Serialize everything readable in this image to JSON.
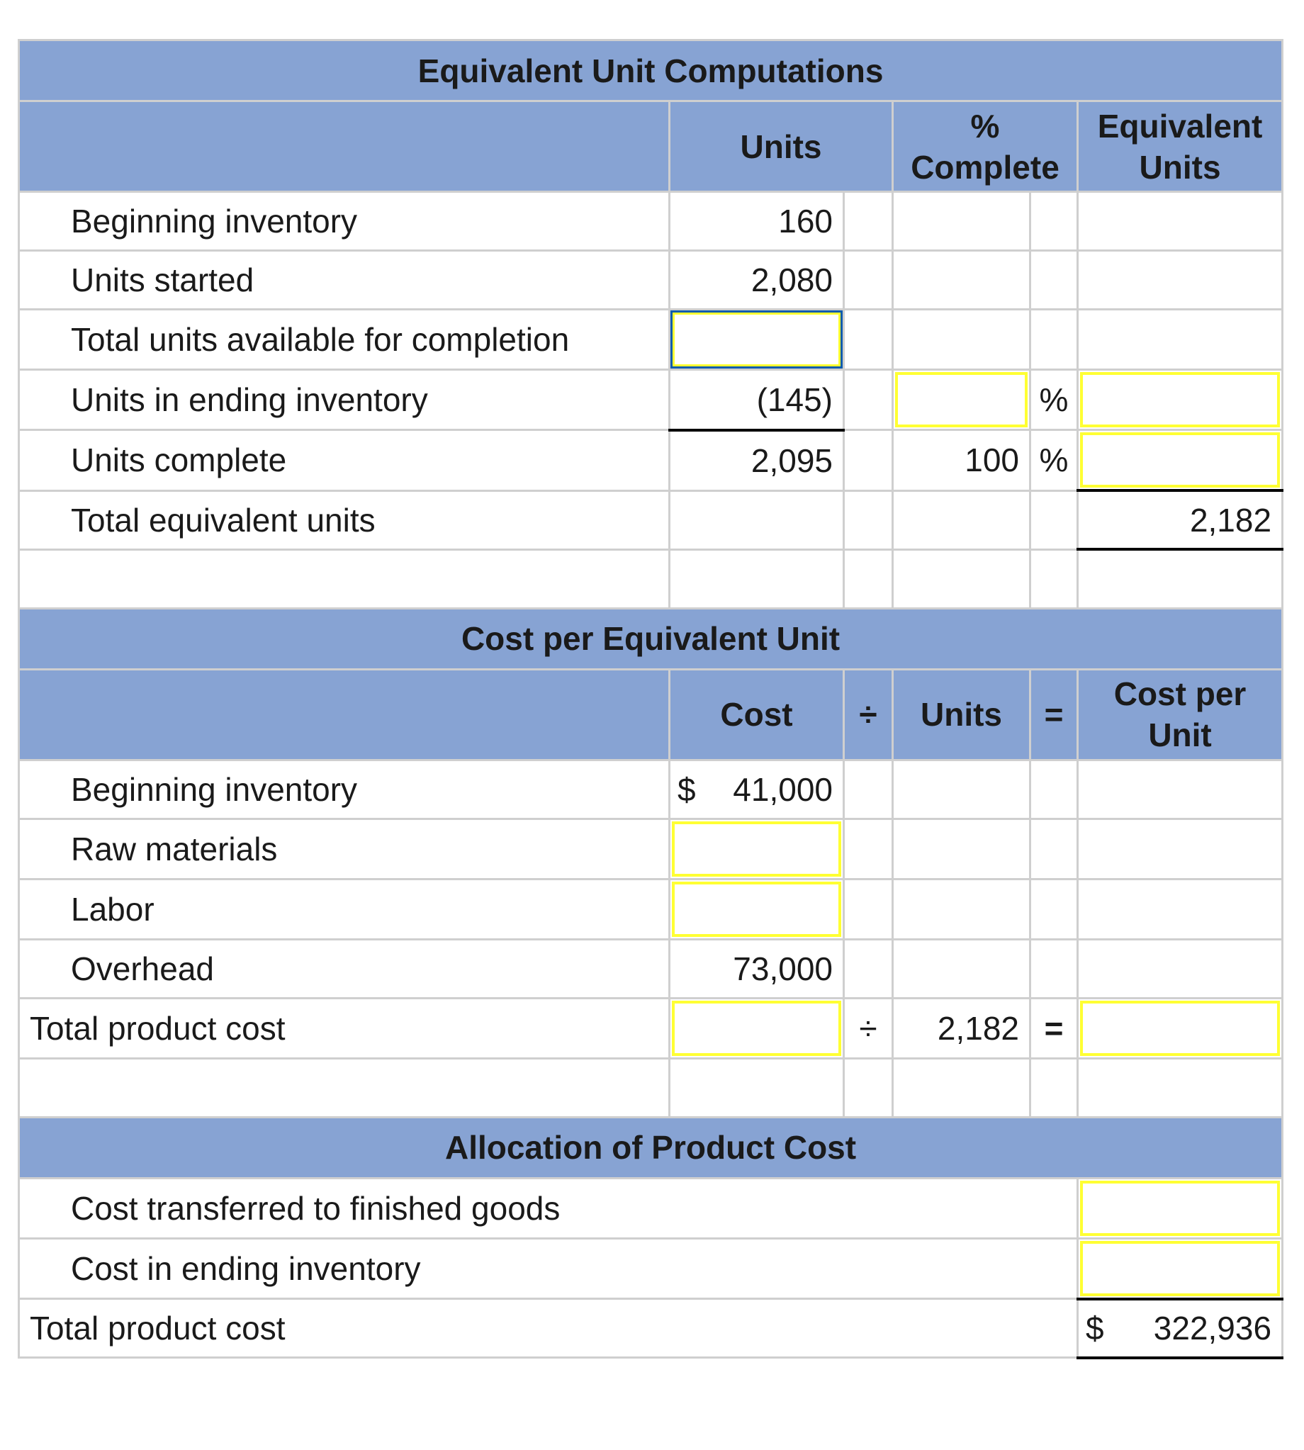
{
  "equiv": {
    "title": "Equivalent Unit Computations",
    "headers": {
      "units": "Units",
      "pct": "% Complete",
      "equiv": "Equivalent Units"
    },
    "rows": {
      "beginning": {
        "label": "Beginning inventory",
        "units": "160"
      },
      "started": {
        "label": "Units started",
        "units": "2,080"
      },
      "available": {
        "label": "Total units available for completion",
        "units": ""
      },
      "ending": {
        "label": "Units in ending inventory",
        "units": "(145)",
        "pct": "",
        "pct_sign": "%",
        "equiv": ""
      },
      "complete": {
        "label": "Units complete",
        "units": "2,095",
        "pct": "100",
        "pct_sign": "%",
        "equiv": ""
      },
      "total": {
        "label": "Total equivalent units",
        "equiv": "2,182"
      }
    }
  },
  "cost": {
    "title": "Cost per Equivalent Unit",
    "headers": {
      "cost": "Cost",
      "div": "÷",
      "units": "Units",
      "eq": "=",
      "cpu": "Cost per Unit"
    },
    "rows": {
      "beginning": {
        "label": "Beginning inventory",
        "dollar": "$",
        "cost": "41,000"
      },
      "materials": {
        "label": "Raw materials",
        "cost": ""
      },
      "labor": {
        "label": "Labor",
        "cost": ""
      },
      "overhead": {
        "label": "Overhead",
        "cost": "73,000"
      },
      "total": {
        "label": "Total product cost",
        "cost": "",
        "div": "÷",
        "units": "2,182",
        "eq": "=",
        "cpu": ""
      }
    }
  },
  "alloc": {
    "title": "Allocation of Product Cost",
    "rows": {
      "transferred": {
        "label": "Cost transferred to finished goods",
        "value": ""
      },
      "ending": {
        "label": "Cost in ending inventory",
        "value": ""
      },
      "total": {
        "label": "Total product cost",
        "dollar": "$",
        "value": "322,936"
      }
    }
  },
  "colors": {
    "header_bg": "#87a3d3",
    "input_border": "#ffff33",
    "focus_border": "#0b5cad"
  }
}
